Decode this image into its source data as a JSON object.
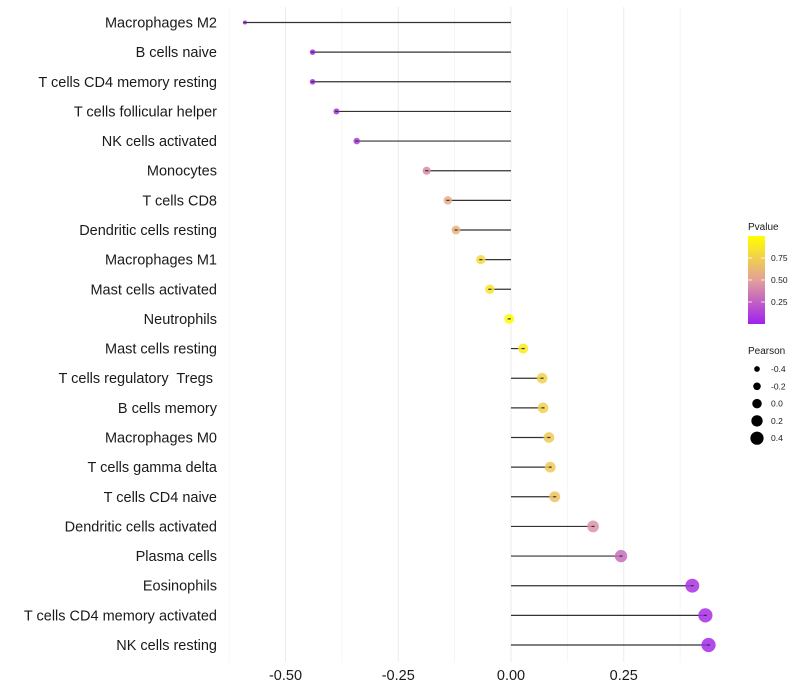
{
  "chart_data": {
    "type": "lollipop",
    "title": "",
    "xlabel": "",
    "ylabel": "",
    "xlim": [
      -0.64,
      0.5
    ],
    "x_ticks": [
      -0.5,
      -0.25,
      0.0,
      0.25
    ],
    "x_tick_labels": [
      "-0.50",
      "-0.25",
      "0.00",
      "0.25"
    ],
    "grid": true,
    "categories": [
      "Macrophages M2",
      "B cells naive",
      "T cells CD4 memory resting",
      "T cells follicular helper",
      "NK cells activated",
      "Monocytes",
      "T cells CD8",
      "Dendritic cells resting",
      "Macrophages M1",
      "Mast cells activated",
      "Neutrophils",
      "Mast cells resting",
      "T cells regulatory  Tregs ",
      "B cells memory",
      "Macrophages M0",
      "T cells gamma delta",
      "T cells CD4 naive",
      "Dendritic cells activated",
      "Plasma cells",
      "Eosinophils",
      "T cells CD4 memory activated",
      "NK cells resting"
    ],
    "series": [
      {
        "name": "Pearson",
        "values": [
          -0.59,
          -0.44,
          -0.44,
          -0.387,
          -0.342,
          -0.187,
          -0.14,
          -0.122,
          -0.067,
          -0.047,
          -0.004,
          0.027,
          0.069,
          0.071,
          0.084,
          0.087,
          0.097,
          0.182,
          0.244,
          0.402,
          0.431,
          0.438
        ]
      },
      {
        "name": "Pvalue",
        "values": [
          0.03,
          0.04,
          0.04,
          0.07,
          0.1,
          0.42,
          0.56,
          0.6,
          0.8,
          0.85,
          0.98,
          0.9,
          0.76,
          0.75,
          0.72,
          0.72,
          0.68,
          0.45,
          0.3,
          0.07,
          0.05,
          0.04
        ]
      }
    ],
    "legend": {
      "placement": "right",
      "color": {
        "title": "Pvalue",
        "ticks": [
          0.25,
          0.5,
          0.75
        ],
        "tick_labels": [
          "0.25",
          "0.50",
          "0.75"
        ],
        "range": [
          0.0,
          1.0
        ],
        "low_color": "#a020f0",
        "mid_color": "#e0a0a0",
        "high_color": "#ffff00"
      },
      "size": {
        "title": "Pearson",
        "values": [
          -0.4,
          -0.2,
          0.0,
          0.2,
          0.4
        ],
        "labels": [
          "-0.4",
          "-0.2",
          "0.0",
          "0.2",
          "0.4"
        ]
      }
    }
  }
}
